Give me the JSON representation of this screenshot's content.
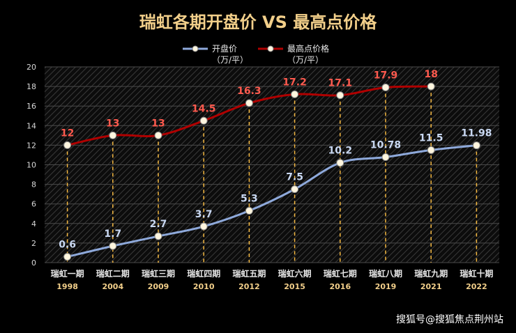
{
  "chart_data": {
    "type": "line",
    "title": "瑞虹各期开盘价 VS 最高点价格",
    "categories": [
      "瑞虹一期",
      "瑞虹二期",
      "瑞虹三期",
      "瑞虹四期",
      "瑞虹五期",
      "瑞虹六期",
      "瑞虹七期",
      "瑞虹八期",
      "瑞虹九期",
      "瑞虹十期"
    ],
    "years": [
      "1998",
      "2004",
      "2009",
      "2010",
      "2012",
      "2015",
      "2016",
      "2019",
      "2021",
      "2022"
    ],
    "ylim": [
      0,
      20
    ],
    "yticks": [
      0,
      2,
      4,
      6,
      8,
      10,
      12,
      14,
      16,
      18,
      20
    ],
    "legend_position": "top",
    "grid": true,
    "series": [
      {
        "name": "开盘价",
        "unit": "（万/平）",
        "color": "#8ea9db",
        "label_color": "#c9d8f2",
        "values": [
          0.6,
          1.7,
          2.7,
          3.7,
          5.3,
          7.5,
          10.2,
          10.78,
          11.5,
          11.98
        ],
        "labels": [
          "0.6",
          "1.7",
          "2.7",
          "3.7",
          "5.3",
          "7.5",
          "10.2",
          "10.78",
          "11.5",
          "11.98"
        ]
      },
      {
        "name": "最高点价格",
        "unit": "（万/平）",
        "color": "#b00000",
        "label_color": "#ff5a4e",
        "values": [
          12,
          13,
          13,
          14.5,
          16.3,
          17.2,
          17.1,
          17.9,
          18,
          null
        ],
        "labels": [
          "12",
          "13",
          "13",
          "14.5",
          "16.3",
          "17.2",
          "17.1",
          "17.9",
          "18",
          ""
        ]
      }
    ]
  },
  "watermark": "搜狐号@搜狐焦点荆州站"
}
